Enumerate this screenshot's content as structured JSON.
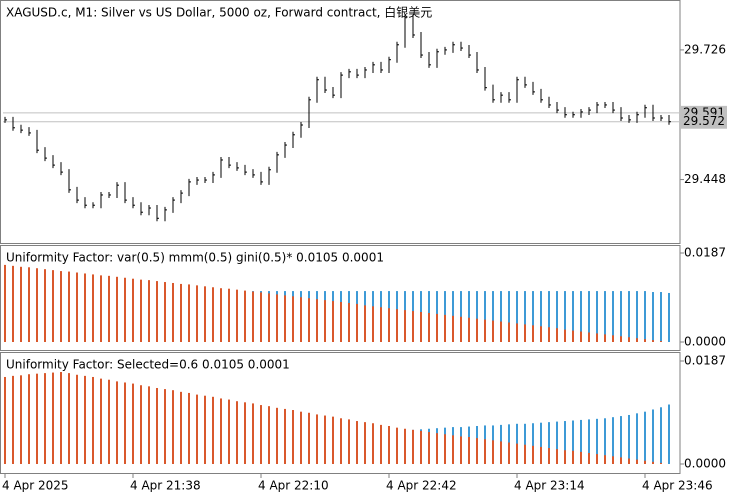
{
  "chart_data": [
    {
      "type": "price_bars",
      "title": "XAGUSD.c, M1:  Silver vs US Dollar, 5000 oz, Forward contract, 白银美元",
      "categories": [
        "4 Apr 2025",
        null,
        null,
        null,
        null,
        null,
        null,
        null,
        null,
        null,
        null,
        null,
        null,
        null,
        null,
        null,
        "4 Apr 21:38",
        null,
        null,
        null,
        null,
        null,
        null,
        null,
        null,
        null,
        null,
        null,
        null,
        null,
        null,
        null,
        "4 Apr 22:10",
        null,
        null,
        null,
        null,
        null,
        null,
        null,
        null,
        null,
        null,
        null,
        null,
        null,
        null,
        null,
        "4 Apr 22:42",
        null,
        null,
        null,
        null,
        null,
        null,
        null,
        null,
        null,
        null,
        null,
        null,
        null,
        null,
        null,
        "4 Apr 23:14",
        null,
        null,
        null,
        null,
        null,
        null,
        null,
        null,
        null,
        null,
        null,
        null,
        null,
        null,
        null,
        "4 Apr 23:46",
        null,
        null,
        null
      ],
      "values": [
        29.576,
        29.559,
        29.554,
        29.548,
        29.511,
        29.494,
        29.479,
        29.464,
        29.426,
        29.404,
        29.393,
        29.393,
        29.415,
        29.415,
        29.436,
        29.404,
        29.393,
        29.378,
        29.387,
        29.365,
        29.383,
        29.404,
        29.419,
        29.443,
        29.447,
        29.447,
        29.458,
        29.49,
        29.479,
        29.473,
        29.464,
        29.458,
        29.443,
        29.469,
        29.501,
        29.522,
        29.544,
        29.565,
        29.619,
        29.662,
        29.64,
        29.629,
        29.672,
        29.679,
        29.672,
        29.683,
        29.694,
        29.683,
        29.705,
        29.737,
        29.795,
        29.758,
        29.715,
        29.694,
        29.722,
        29.726,
        29.737,
        29.73,
        29.715,
        29.683,
        29.645,
        29.619,
        29.629,
        29.619,
        29.662,
        29.651,
        29.636,
        29.619,
        29.608,
        29.597,
        29.587,
        29.587,
        29.593,
        29.597,
        29.608,
        29.608,
        29.597,
        29.58,
        29.576,
        29.587,
        29.602,
        29.58,
        29.58,
        29.572
      ],
      "color": "#000000",
      "ylim": [
        29.312,
        29.833
      ],
      "yticks": [
        29.448,
        29.726
      ],
      "price_lines": [
        29.591,
        29.572
      ]
    },
    {
      "type": "histogram",
      "title": "Uniformity Factor: var(0.5) mmm(0.5) gini(0.5)* 0.0105 0.0001",
      "series": [
        {
          "color": "#3d9ad6",
          "values": [
            0.0107,
            0.0107,
            0.0107,
            0.0107,
            0.0107,
            0.0107,
            0.0107,
            0.0107,
            0.0107,
            0.0107,
            0.0107,
            0.0107,
            0.0107,
            0.0107,
            0.0107,
            0.0107,
            0.0107,
            0.0107,
            0.0107,
            0.0107,
            0.0107,
            0.0107,
            0.0107,
            0.0107,
            0.0107,
            0.0107,
            0.0107,
            0.0107,
            0.0107,
            0.0107,
            0.0107,
            0.0107,
            0.0107,
            0.0107,
            0.0107,
            0.0107,
            0.0107,
            0.0107,
            0.0107,
            0.0107,
            0.0107,
            0.0107,
            0.0107,
            0.0107,
            0.0107,
            0.0107,
            0.0107,
            0.0107,
            0.0107,
            0.0107,
            0.0107,
            0.0107,
            0.0107,
            0.0107,
            0.0107,
            0.0107,
            0.0107,
            0.0107,
            0.0107,
            0.0107,
            0.0107,
            0.0107,
            0.0107,
            0.0107,
            0.0107,
            0.0107,
            0.0107,
            0.0107,
            0.0107,
            0.0107,
            0.0107,
            0.0107,
            0.0107,
            0.0107,
            0.0107,
            0.0107,
            0.0107,
            0.0107,
            0.0107,
            0.0107,
            0.0107,
            0.0105,
            0.0105,
            0.0103
          ]
        },
        {
          "color": "#d9582c",
          "values": [
            0.0162,
            0.016,
            0.0158,
            0.0157,
            0.0155,
            0.0153,
            0.0151,
            0.0149,
            0.0148,
            0.0146,
            0.0144,
            0.0142,
            0.014,
            0.0139,
            0.0137,
            0.0135,
            0.0133,
            0.0131,
            0.013,
            0.0128,
            0.0126,
            0.0124,
            0.0122,
            0.0121,
            0.0119,
            0.0117,
            0.0115,
            0.0113,
            0.0112,
            0.011,
            0.0108,
            0.0106,
            0.0104,
            0.0102,
            0.01,
            0.0098,
            0.0096,
            0.0094,
            0.0092,
            0.009,
            0.0088,
            0.0086,
            0.0084,
            0.0082,
            0.008,
            0.0077,
            0.0075,
            0.0073,
            0.0071,
            0.0069,
            0.0067,
            0.0065,
            0.0063,
            0.0061,
            0.0059,
            0.0057,
            0.0055,
            0.0053,
            0.0051,
            0.0049,
            0.0047,
            0.0045,
            0.0043,
            0.0041,
            0.0039,
            0.0037,
            0.0035,
            0.0033,
            0.0031,
            0.0029,
            0.0026,
            0.0024,
            0.0022,
            0.002,
            0.0018,
            0.0016,
            0.0014,
            0.0012,
            0.001,
            0.0008,
            0.0006,
            0.0004,
            0.0002,
            0.0
          ]
        }
      ],
      "ylim": [
        0,
        0.0187
      ],
      "yticks": [
        {
          "value": 0.0187,
          "label": "0.0187"
        },
        {
          "value": 0,
          "label": "0.0000"
        }
      ]
    },
    {
      "type": "histogram",
      "title": "Uniformity Factor: Selected=0.6 0.0105 0.0001",
      "series": [
        {
          "color": "#3d9ad6",
          "values": [
            0.0059,
            0.0059,
            0.0059,
            0.0059,
            0.0059,
            0.0059,
            0.0059,
            0.0059,
            0.0059,
            0.0059,
            0.0059,
            0.0059,
            0.0059,
            0.0059,
            0.0059,
            0.0059,
            0.0059,
            0.0059,
            0.0059,
            0.0059,
            0.0059,
            0.0059,
            0.0059,
            0.0059,
            0.0059,
            0.0059,
            0.0059,
            0.0059,
            0.0059,
            0.0059,
            0.0059,
            0.0059,
            0.0059,
            0.0059,
            0.0059,
            0.0059,
            0.0059,
            0.0059,
            0.0059,
            0.0059,
            0.0059,
            0.0059,
            0.0059,
            0.0059,
            0.0059,
            0.0059,
            0.0059,
            0.0059,
            0.0059,
            0.006,
            0.0061,
            0.0062,
            0.0063,
            0.0064,
            0.0065,
            0.0066,
            0.0067,
            0.0067,
            0.0068,
            0.0069,
            0.007,
            0.007,
            0.0071,
            0.0072,
            0.0073,
            0.0073,
            0.0074,
            0.0075,
            0.0076,
            0.0077,
            0.0078,
            0.0079,
            0.008,
            0.0081,
            0.0082,
            0.0083,
            0.0085,
            0.0087,
            0.0089,
            0.0092,
            0.0095,
            0.0099,
            0.0103,
            0.0108
          ]
        },
        {
          "color": "#d9582c",
          "values": [
            0.0158,
            0.016,
            0.0161,
            0.0163,
            0.0164,
            0.0165,
            0.0166,
            0.0167,
            0.0165,
            0.0162,
            0.016,
            0.0158,
            0.0155,
            0.0153,
            0.015,
            0.0148,
            0.0146,
            0.0143,
            0.0141,
            0.0138,
            0.0136,
            0.0134,
            0.0131,
            0.0129,
            0.0126,
            0.0124,
            0.0122,
            0.0119,
            0.0117,
            0.0114,
            0.0112,
            0.011,
            0.0107,
            0.0105,
            0.0102,
            0.01,
            0.0098,
            0.0095,
            0.0093,
            0.009,
            0.0088,
            0.0086,
            0.0083,
            0.0081,
            0.0078,
            0.0076,
            0.0074,
            0.0071,
            0.0069,
            0.0066,
            0.0064,
            0.0062,
            0.006,
            0.0058,
            0.0056,
            0.0054,
            0.0052,
            0.005,
            0.0049,
            0.0047,
            0.0045,
            0.0043,
            0.0041,
            0.0039,
            0.0037,
            0.0035,
            0.0033,
            0.0031,
            0.0029,
            0.0027,
            0.0025,
            0.0024,
            0.0022,
            0.002,
            0.0018,
            0.0016,
            0.0014,
            0.0012,
            0.001,
            0.0008,
            0.0006,
            0.0004,
            0.0002,
            0.0
          ]
        }
      ],
      "ylim": [
        0,
        0.0187
      ],
      "yticks": [
        {
          "value": 0.0187,
          "label": "0.0187"
        },
        {
          "value": 0,
          "label": "0.0000"
        }
      ]
    }
  ]
}
